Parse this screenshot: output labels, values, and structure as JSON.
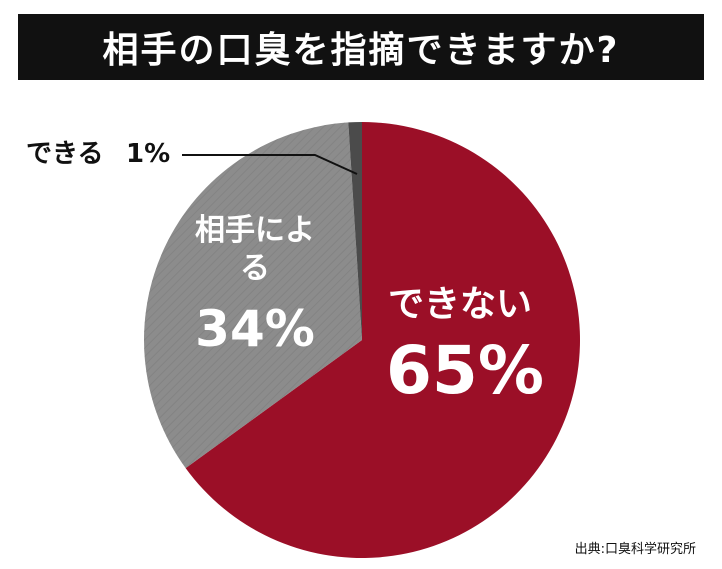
{
  "chart_data": {
    "type": "pie",
    "title": "相手の口臭を指摘できますか?",
    "categories": [
      "できない",
      "相手による ",
      "できる"
    ],
    "values": [
      65,
      34,
      1
    ],
    "value_labels": [
      "65%",
      "34%",
      "1%"
    ],
    "colors": [
      "#9b0f27",
      "#8c8c8c",
      "#4b4b4b"
    ],
    "source": "出典:口臭科学研究所"
  }
}
